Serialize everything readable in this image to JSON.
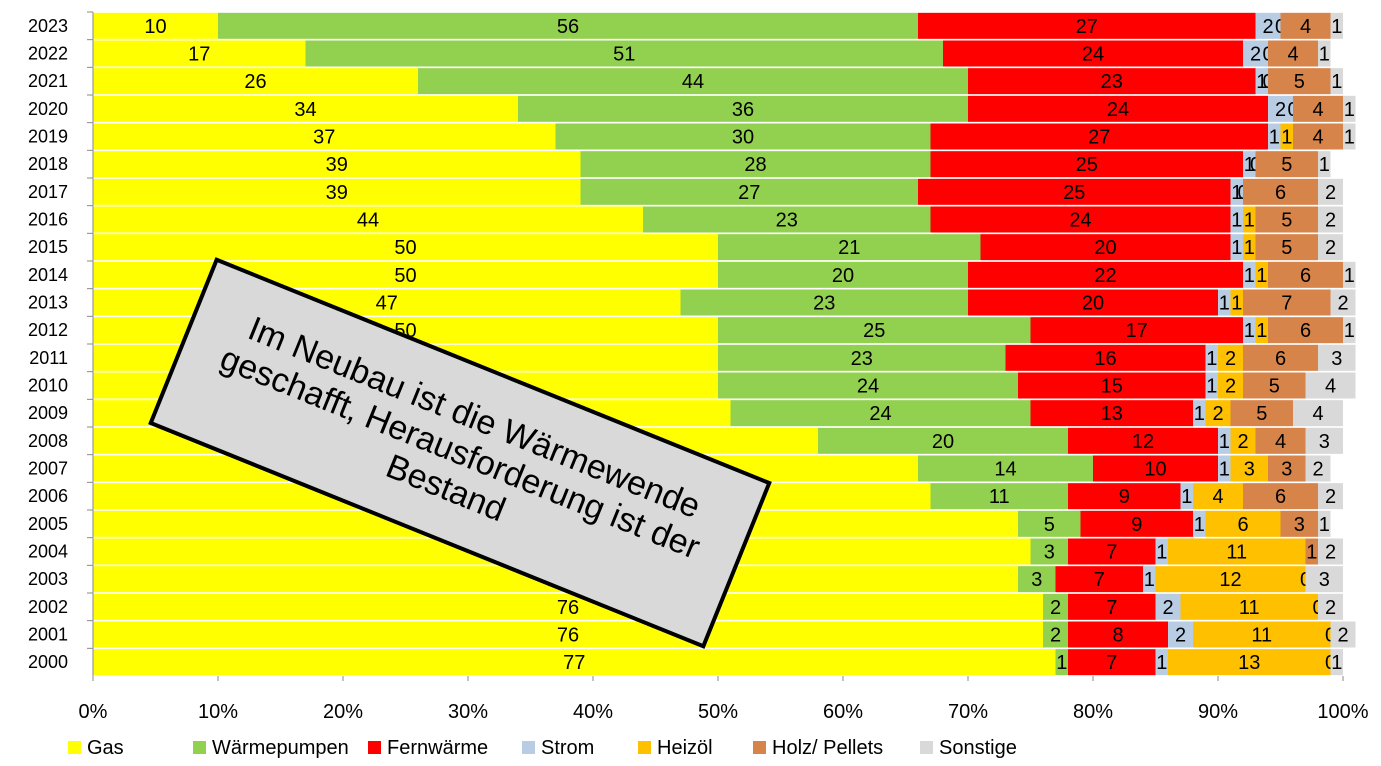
{
  "chart_data": {
    "type": "stacked_barh",
    "categories": [
      "2023",
      "2022",
      "2021",
      "2020",
      "2019",
      "2018",
      "2017",
      "2016",
      "2015",
      "2014",
      "2013",
      "2012",
      "2011",
      "2010",
      "2009",
      "2008",
      "2007",
      "2006",
      "2005",
      "2004",
      "2003",
      "2002",
      "2001",
      "2000"
    ],
    "series": [
      {
        "name": "Gas",
        "color": "#ffff00",
        "values": [
          10,
          17,
          26,
          34,
          37,
          39,
          39,
          44,
          50,
          50,
          47,
          50,
          50,
          50,
          51,
          58,
          66,
          67,
          74,
          75,
          74,
          76,
          76,
          77
        ]
      },
      {
        "name": "Wärmepumpen",
        "color": "#92d050",
        "values": [
          56,
          51,
          44,
          36,
          30,
          28,
          27,
          23,
          21,
          20,
          23,
          25,
          23,
          24,
          24,
          20,
          14,
          11,
          5,
          3,
          3,
          2,
          2,
          1
        ]
      },
      {
        "name": "Fernwärme",
        "color": "#ff0000",
        "values": [
          27,
          24,
          23,
          24,
          27,
          25,
          25,
          24,
          20,
          22,
          20,
          17,
          16,
          15,
          13,
          12,
          10,
          9,
          9,
          7,
          7,
          7,
          8,
          7
        ]
      },
      {
        "name": "Strom",
        "color": "#b8cce4",
        "values": [
          2,
          2,
          1,
          2,
          1,
          1,
          1,
          1,
          1,
          1,
          1,
          1,
          1,
          1,
          1,
          1,
          1,
          1,
          1,
          1,
          1,
          2,
          2,
          1
        ]
      },
      {
        "name": "Heizöl",
        "color": "#ffc000",
        "values": [
          0,
          0,
          0,
          0,
          1,
          0,
          0,
          1,
          1,
          1,
          1,
          1,
          2,
          2,
          2,
          2,
          3,
          4,
          6,
          11,
          12,
          11,
          11,
          13
        ]
      },
      {
        "name": "Holz/ Pellets",
        "color": "#d6844a",
        "values": [
          4,
          4,
          5,
          4,
          4,
          5,
          6,
          5,
          5,
          6,
          7,
          6,
          6,
          5,
          5,
          4,
          3,
          6,
          3,
          1,
          0,
          0,
          0,
          0
        ]
      },
      {
        "name": "Sonstige",
        "color": "#d9d9d9",
        "values": [
          1,
          1,
          1,
          1,
          1,
          1,
          2,
          2,
          2,
          1,
          2,
          1,
          3,
          4,
          4,
          3,
          2,
          2,
          1,
          2,
          3,
          2,
          2,
          1
        ]
      }
    ],
    "xlim": [
      0,
      100
    ],
    "xticks": [
      {
        "value": 0,
        "label": "0%"
      },
      {
        "value": 10,
        "label": "10%"
      },
      {
        "value": 20,
        "label": "20%"
      },
      {
        "value": 30,
        "label": "30%"
      },
      {
        "value": 40,
        "label": "40%"
      },
      {
        "value": 50,
        "label": "50%"
      },
      {
        "value": 60,
        "label": "60%"
      },
      {
        "value": 70,
        "label": "70%"
      },
      {
        "value": 80,
        "label": "80%"
      },
      {
        "value": 90,
        "label": "90%"
      },
      {
        "value": 100,
        "label": "100%"
      }
    ],
    "grid": false,
    "legend": "bottom",
    "annotation": "Im Neubau ist die Wärmewende geschafft, Herausforderung ist der Bestand"
  }
}
